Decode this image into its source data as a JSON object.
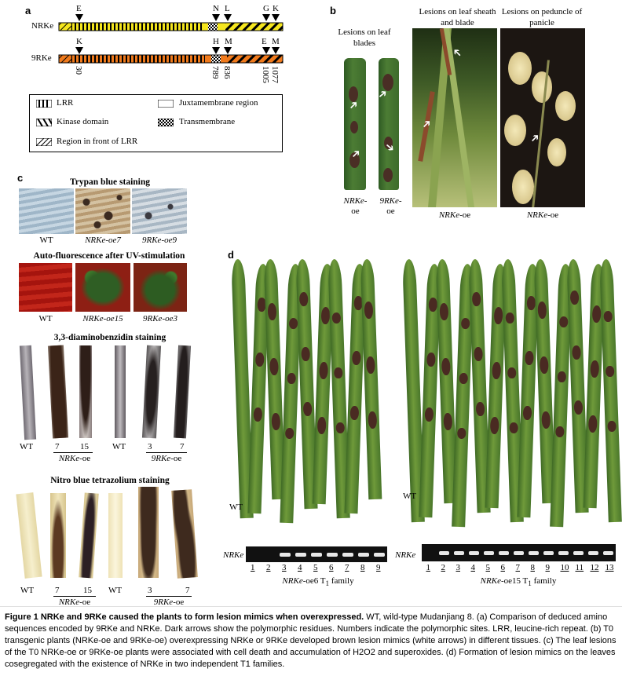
{
  "panel_a": {
    "label": "a",
    "row1_name": "NRKe",
    "row2_name": "9RKe",
    "top_markers": [
      "E",
      "N",
      "L",
      "G",
      "K"
    ],
    "bottom_markers": [
      "K",
      "H",
      "M",
      "E",
      "M"
    ],
    "positions": [
      "30",
      "789",
      "836",
      "1005",
      "1077"
    ],
    "legend": {
      "lrr": "LRR",
      "juxta": "Juxtamembrane region",
      "kinase": "Kinase domain",
      "trans": "Transmembrane",
      "front": "Region in front of LRR"
    },
    "colors": {
      "nrke": "#f5e61e",
      "rke9": "#f07a1c"
    }
  },
  "panel_b": {
    "label": "b",
    "col1_title": "Lesions on leaf blades",
    "col2_title": "Lesions on leaf sheath and blade",
    "col3_title": "Lesions on peduncle of panicle",
    "leaf1_label": "NRKe-",
    "leaf1_label2": "oe",
    "leaf2_label": "9RKe-",
    "leaf2_label2": "oe",
    "photo2_label": "NRKe-oe",
    "photo3_label": "NRKe-oe"
  },
  "panel_c": {
    "label": "c",
    "trypan_title": "Trypan blue staining",
    "trypan_labels": [
      "WT",
      "NRKe-oe7",
      "9RKe-oe9"
    ],
    "uv_title": "Auto-fluorescence after UV-stimulation",
    "uv_labels": [
      "WT",
      "NRKe-oe15",
      "9RKe-oe3"
    ],
    "dab_title": "3,3-diaminobenzidin staining",
    "dab_labels": [
      "WT",
      "7",
      "15",
      "WT",
      "3",
      "7"
    ],
    "dab_groups": [
      "NRKe-oe",
      "9RKe-oe"
    ],
    "nbt_title": "Nitro blue tetrazolium staining",
    "nbt_labels": [
      "WT",
      "7",
      "15",
      "WT",
      "3",
      "7"
    ],
    "nbt_groups": [
      "NRKe-oe",
      "9RKe-oe"
    ]
  },
  "panel_d": {
    "label": "d",
    "wt_left": "WT",
    "wt_right": "WT",
    "gel_label_left": "NRKe",
    "gel_label_right": "NRKe",
    "lanes_left": [
      "1",
      "2",
      "3",
      "4",
      "5",
      "6",
      "7",
      "8",
      "9"
    ],
    "lanes_right": [
      "1",
      "2",
      "3",
      "4",
      "5",
      "6",
      "7",
      "8",
      "9",
      "10",
      "11",
      "12",
      "13"
    ],
    "family_left": "NRKe-oe6 T1 family",
    "family_right": "NRKe-oe15 T1 family"
  },
  "caption": {
    "bold": "Figure 1 NRKe and 9RKe caused the plants to form lesion mimics when overexpressed.",
    "body": " WT, wild-type Mudanjiang 8. (a) Comparison of deduced amino sequences encoded by 9RKe and NRKe. Dark arrows show the polymorphic residues. Numbers indicate the polymorphic sites. LRR, leucine-rich repeat. (b) T0 transgenic plants (NRKe-oe and 9RKe-oe) overexpressing NRKe or 9RKe developed brown lesion mimics (white arrows) in different tissues. (c) The leaf lesions of the T0 NRKe-oe or 9RKe-oe plants were associated with cell death and accumulation of H2O2 and superoxides. (d) Formation of lesion mimics on the leaves cosegregated with the existence of NRKe in two independent T1 families."
  }
}
